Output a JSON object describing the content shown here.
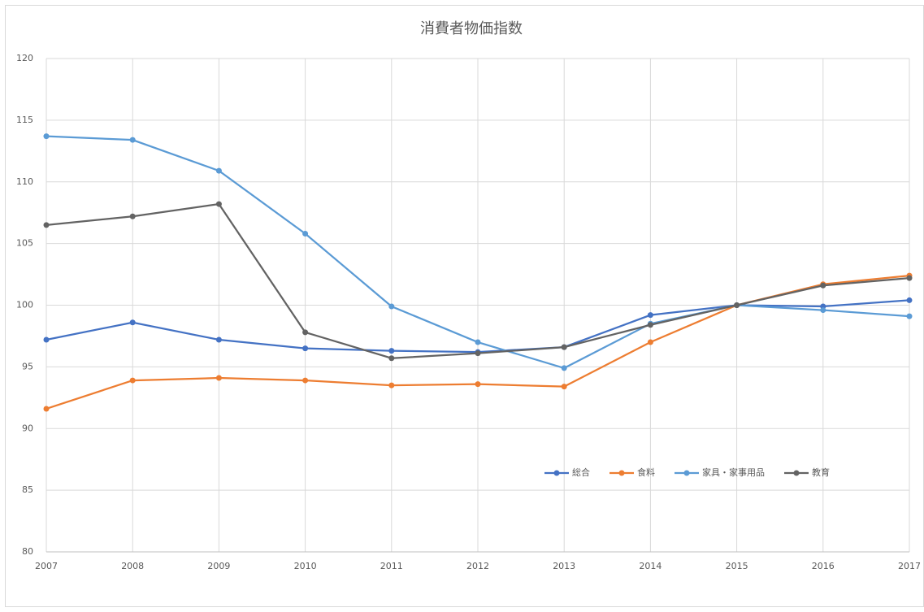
{
  "chart_data": {
    "type": "line",
    "title": "消費者物価指数",
    "x": [
      2007,
      2008,
      2009,
      2010,
      2011,
      2012,
      2013,
      2014,
      2015,
      2016,
      2017
    ],
    "xlim": [
      2007,
      2017
    ],
    "xticks": [
      2007,
      2008,
      2009,
      2010,
      2011,
      2012,
      2013,
      2014,
      2015,
      2016,
      2017
    ],
    "ylim": [
      80,
      120
    ],
    "yticks": [
      80,
      85,
      90,
      95,
      100,
      105,
      110,
      115,
      120
    ],
    "grid": true,
    "legend": "lower right",
    "series": [
      {
        "name": "総合",
        "color": "#4472c4",
        "values": [
          97.2,
          98.6,
          97.2,
          96.5,
          96.3,
          96.2,
          96.6,
          99.2,
          100,
          99.9,
          100.4
        ]
      },
      {
        "name": "食料",
        "color": "#ed7d31",
        "values": [
          91.6,
          93.9,
          94.1,
          93.9,
          93.5,
          93.6,
          93.4,
          97.0,
          100,
          101.7,
          102.4
        ]
      },
      {
        "name": "家具・家事用品",
        "color": "#5b9bd5",
        "values": [
          113.7,
          113.4,
          110.9,
          105.8,
          99.9,
          97.0,
          94.9,
          98.5,
          100,
          99.6,
          99.1
        ]
      },
      {
        "name": "教育",
        "color": "#636363",
        "values": [
          106.5,
          107.2,
          108.2,
          97.8,
          95.7,
          96.1,
          96.6,
          98.4,
          100,
          101.6,
          102.2
        ]
      }
    ]
  }
}
